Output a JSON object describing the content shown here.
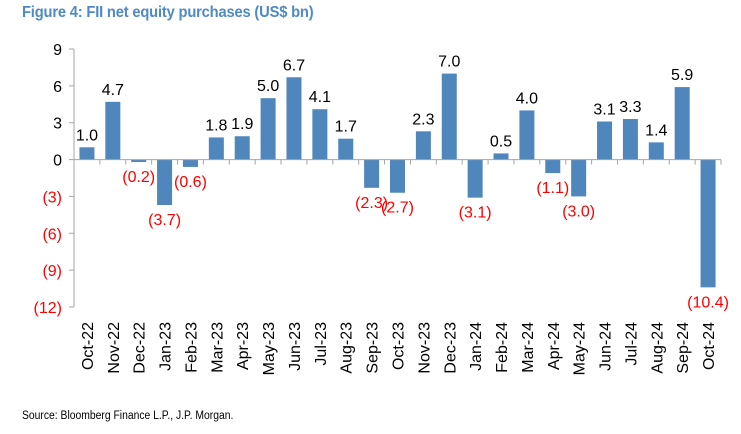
{
  "page": {
    "title": "Figure 4: FII net equity purchases (US$ bn)",
    "source": "Source: Bloomberg Finance L.P., J.P. Morgan."
  },
  "colors": {
    "bar": "#4f87bd",
    "title": "#4f8ac4",
    "negative_label": "#ff0000",
    "positive_label": "#000000",
    "axis": "#a6a6a6"
  },
  "chart_data": {
    "type": "bar",
    "title": "Figure 4: FII net equity purchases (US$ bn)",
    "xlabel": "",
    "ylabel": "",
    "ylim": [
      -12,
      9
    ],
    "yticks": [
      9,
      6,
      3,
      0,
      -3,
      -6,
      -9,
      -12
    ],
    "ytick_labels": [
      "9",
      "6",
      "3",
      "0",
      "(3)",
      "(6)",
      "(9)",
      "(12)"
    ],
    "grid": false,
    "legend": "none",
    "categories": [
      "Oct-22",
      "Nov-22",
      "Dec-22",
      "Jan-23",
      "Feb-23",
      "Mar-23",
      "Apr-23",
      "May-23",
      "Jun-23",
      "Jul-23",
      "Aug-23",
      "Sep-23",
      "Oct-23",
      "Nov-23",
      "Dec-23",
      "Jan-24",
      "Feb-24",
      "Mar-24",
      "Apr-24",
      "May-24",
      "Jun-24",
      "Jul-24",
      "Aug-24",
      "Sep-24",
      "Oct-24"
    ],
    "values": [
      1.0,
      4.7,
      -0.2,
      -3.7,
      -0.6,
      1.8,
      1.9,
      5.0,
      6.7,
      4.1,
      1.7,
      -2.3,
      -2.7,
      2.3,
      7.0,
      -3.1,
      0.5,
      4.0,
      -1.1,
      -3.0,
      3.1,
      3.3,
      1.4,
      5.9,
      -10.4
    ],
    "data_labels": [
      "1.0",
      "4.7",
      "(0.2)",
      "(3.7)",
      "(0.6)",
      "1.8",
      "1.9",
      "5.0",
      "6.7",
      "4.1",
      "1.7",
      "(2.3)",
      "(2.7)",
      "2.3",
      "7.0",
      "(3.1)",
      "0.5",
      "4.0",
      "(1.1)",
      "(3.0)",
      "3.1",
      "3.3",
      "1.4",
      "5.9",
      "(10.4)"
    ],
    "source": "Source: Bloomberg Finance L.P., J.P. Morgan."
  }
}
